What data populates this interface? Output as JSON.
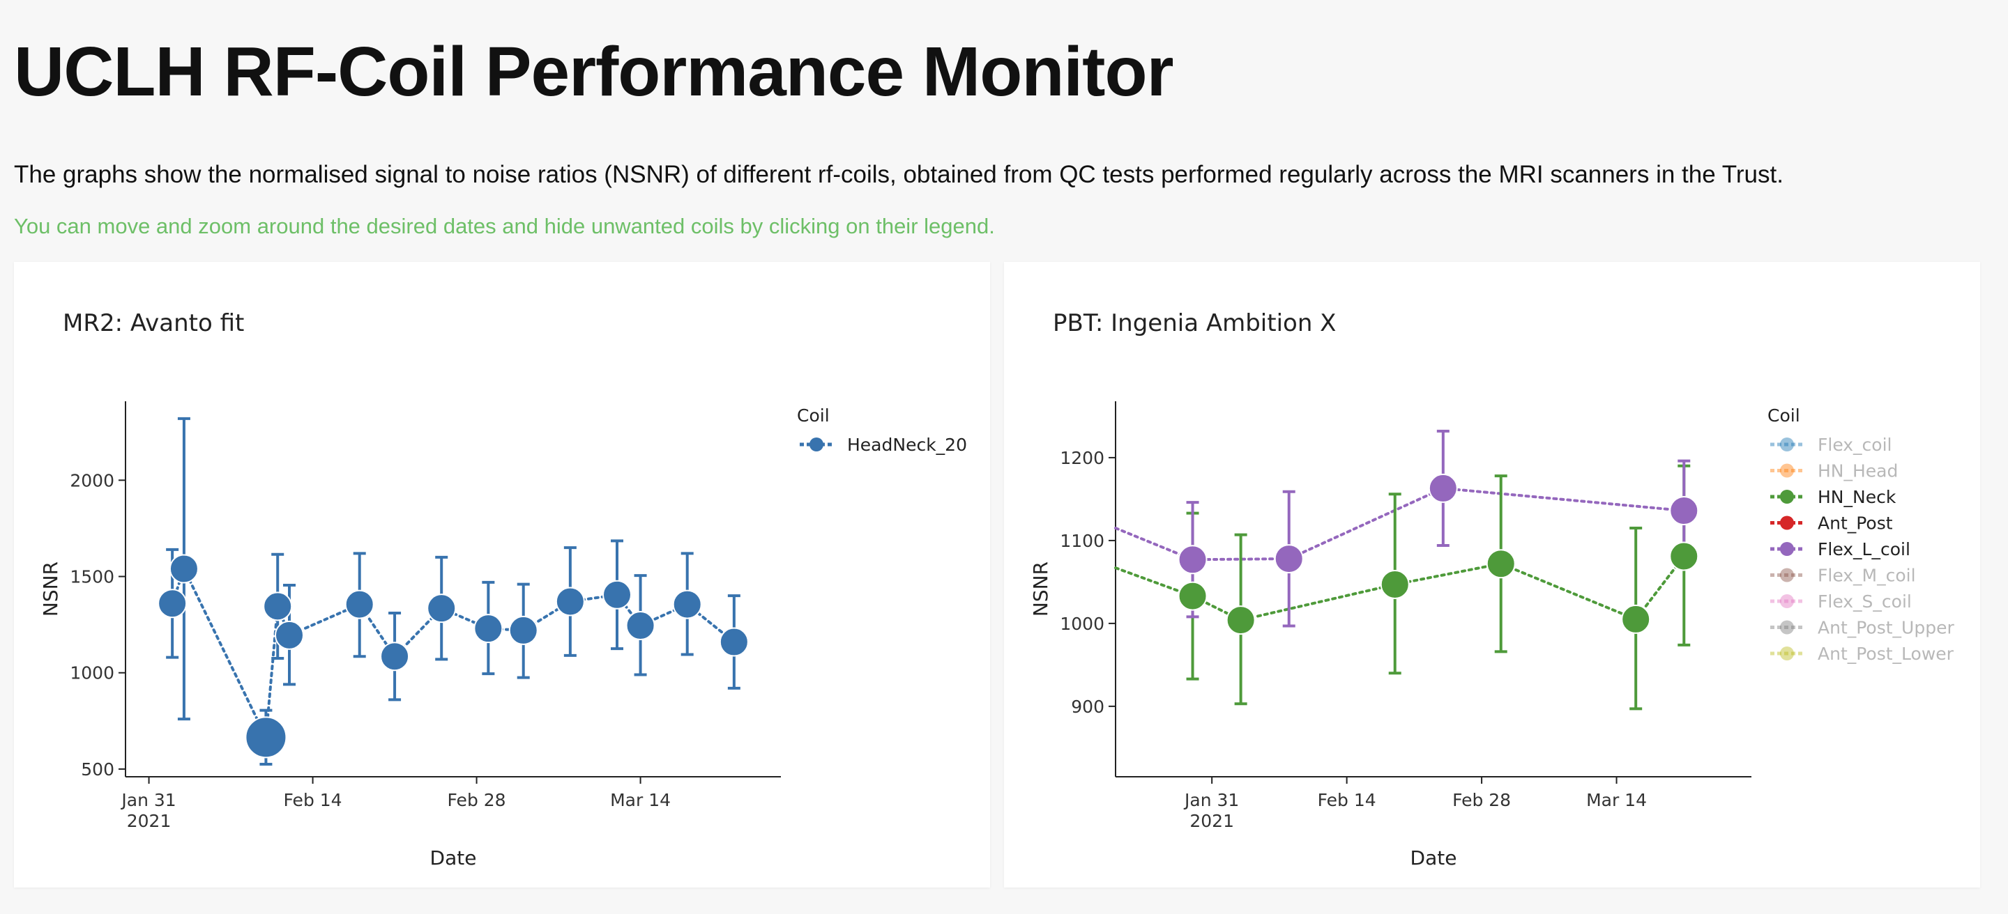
{
  "page": {
    "title": "UCLH RF-Coil Performance Monitor",
    "description": "The graphs show the normalised signal to noise ratios (NSNR) of different rf-coils, obtained from QC tests performed regularly across the MRI scanners in the Trust.",
    "instruction": "You can move and zoom around the desired dates and hide unwanted coils by clicking on their legend.",
    "instruction_color": "#6dbf67"
  },
  "chart_data": [
    {
      "type": "scatter",
      "title": "MR2: Avanto fit",
      "xlabel": "Date",
      "ylabel": "NSNR",
      "xlim": [
        "2021-01-29",
        "2021-03-26"
      ],
      "ylim": [
        460,
        2410
      ],
      "x_ticks": [
        {
          "date": "2021-01-31",
          "label": "Jan 31",
          "sublabel": "2021"
        },
        {
          "date": "2021-02-14",
          "label": "Feb 14",
          "sublabel": ""
        },
        {
          "date": "2021-02-28",
          "label": "Feb 28",
          "sublabel": ""
        },
        {
          "date": "2021-03-14",
          "label": "Mar 14",
          "sublabel": ""
        }
      ],
      "y_ticks": [
        500,
        1000,
        1500,
        2000
      ],
      "legend_title": "Coil",
      "legend_position": "top-right",
      "series": [
        {
          "name": "HeadNeck_20",
          "color": "#3873ae",
          "visible": true,
          "points": [
            {
              "x": "2021-02-02",
              "y": 1360,
              "err_low": 1080,
              "err_high": 1640,
              "size": 1
            },
            {
              "x": "2021-02-03",
              "y": 1540,
              "err_low": 760,
              "err_high": 2320,
              "size": 1
            },
            {
              "x": "2021-02-10",
              "y": 665,
              "err_low": 525,
              "err_high": 805,
              "size": 1.45
            },
            {
              "x": "2021-02-11",
              "y": 1345,
              "err_low": 1075,
              "err_high": 1615,
              "size": 1
            },
            {
              "x": "2021-02-12",
              "y": 1195,
              "err_low": 940,
              "err_high": 1455,
              "size": 1
            },
            {
              "x": "2021-02-18",
              "y": 1355,
              "err_low": 1085,
              "err_high": 1620,
              "size": 1
            },
            {
              "x": "2021-02-21",
              "y": 1085,
              "err_low": 860,
              "err_high": 1310,
              "size": 1
            },
            {
              "x": "2021-02-25",
              "y": 1335,
              "err_low": 1070,
              "err_high": 1600,
              "size": 1
            },
            {
              "x": "2021-03-01",
              "y": 1230,
              "err_low": 995,
              "err_high": 1470,
              "size": 1
            },
            {
              "x": "2021-03-04",
              "y": 1220,
              "err_low": 975,
              "err_high": 1460,
              "size": 1
            },
            {
              "x": "2021-03-08",
              "y": 1370,
              "err_low": 1090,
              "err_high": 1650,
              "size": 1
            },
            {
              "x": "2021-03-12",
              "y": 1405,
              "err_low": 1125,
              "err_high": 1685,
              "size": 1
            },
            {
              "x": "2021-03-14",
              "y": 1245,
              "err_low": 990,
              "err_high": 1505,
              "size": 1
            },
            {
              "x": "2021-03-18",
              "y": 1355,
              "err_low": 1095,
              "err_high": 1620,
              "size": 1
            },
            {
              "x": "2021-03-22",
              "y": 1160,
              "err_low": 920,
              "err_high": 1400,
              "size": 1
            }
          ]
        }
      ]
    },
    {
      "type": "scatter",
      "title": "PBT: Ingenia Ambition X",
      "xlabel": "Date",
      "ylabel": "NSNR",
      "xlim": [
        "2021-01-21",
        "2021-03-28"
      ],
      "ylim": [
        815,
        1268
      ],
      "x_ticks": [
        {
          "date": "2021-01-31",
          "label": "Jan 31",
          "sublabel": "2021"
        },
        {
          "date": "2021-02-14",
          "label": "Feb 14",
          "sublabel": ""
        },
        {
          "date": "2021-02-28",
          "label": "Feb 28",
          "sublabel": ""
        },
        {
          "date": "2021-03-14",
          "label": "Mar 14",
          "sublabel": ""
        }
      ],
      "y_ticks": [
        900,
        1000,
        1100,
        1200
      ],
      "legend_title": "Coil",
      "legend_position": "top-right",
      "series": [
        {
          "name": "Flex_coil",
          "color": "#1f77b4",
          "visible": false,
          "points": []
        },
        {
          "name": "HN_Head",
          "color": "#ff7f0e",
          "visible": false,
          "points": []
        },
        {
          "name": "HN_Neck",
          "color": "#4e9a3a",
          "visible": true,
          "line_from": 1067,
          "points": [
            {
              "x": "2021-01-29",
              "y": 1033,
              "err_low": 933,
              "err_high": 1133
            },
            {
              "x": "2021-02-03",
              "y": 1004,
              "err_low": 903,
              "err_high": 1107
            },
            {
              "x": "2021-02-19",
              "y": 1047,
              "err_low": 940,
              "err_high": 1156
            },
            {
              "x": "2021-03-02",
              "y": 1072,
              "err_low": 966,
              "err_high": 1178
            },
            {
              "x": "2021-03-16",
              "y": 1005,
              "err_low": 897,
              "err_high": 1115
            },
            {
              "x": "2021-03-21",
              "y": 1081,
              "err_low": 974,
              "err_high": 1190
            }
          ]
        },
        {
          "name": "Ant_Post",
          "color": "#d62728",
          "visible": true,
          "points": []
        },
        {
          "name": "Flex_L_coil",
          "color": "#9467bd",
          "visible": true,
          "line_from": 1115,
          "points": [
            {
              "x": "2021-01-29",
              "y": 1077,
              "err_low": 1008,
              "err_high": 1146
            },
            {
              "x": "2021-02-08",
              "y": 1078,
              "err_low": 997,
              "err_high": 1159
            },
            {
              "x": "2021-02-24",
              "y": 1163,
              "err_low": 1094,
              "err_high": 1232
            },
            {
              "x": "2021-03-21",
              "y": 1136,
              "err_low": 1076,
              "err_high": 1196
            }
          ]
        },
        {
          "name": "Flex_M_coil",
          "color": "#8c564b",
          "visible": false,
          "points": []
        },
        {
          "name": "Flex_S_coil",
          "color": "#e377c2",
          "visible": false,
          "points": []
        },
        {
          "name": "Ant_Post_Upper",
          "color": "#7f7f7f",
          "visible": false,
          "points": []
        },
        {
          "name": "Ant_Post_Lower",
          "color": "#bcbd22",
          "visible": false,
          "points": []
        }
      ]
    }
  ]
}
